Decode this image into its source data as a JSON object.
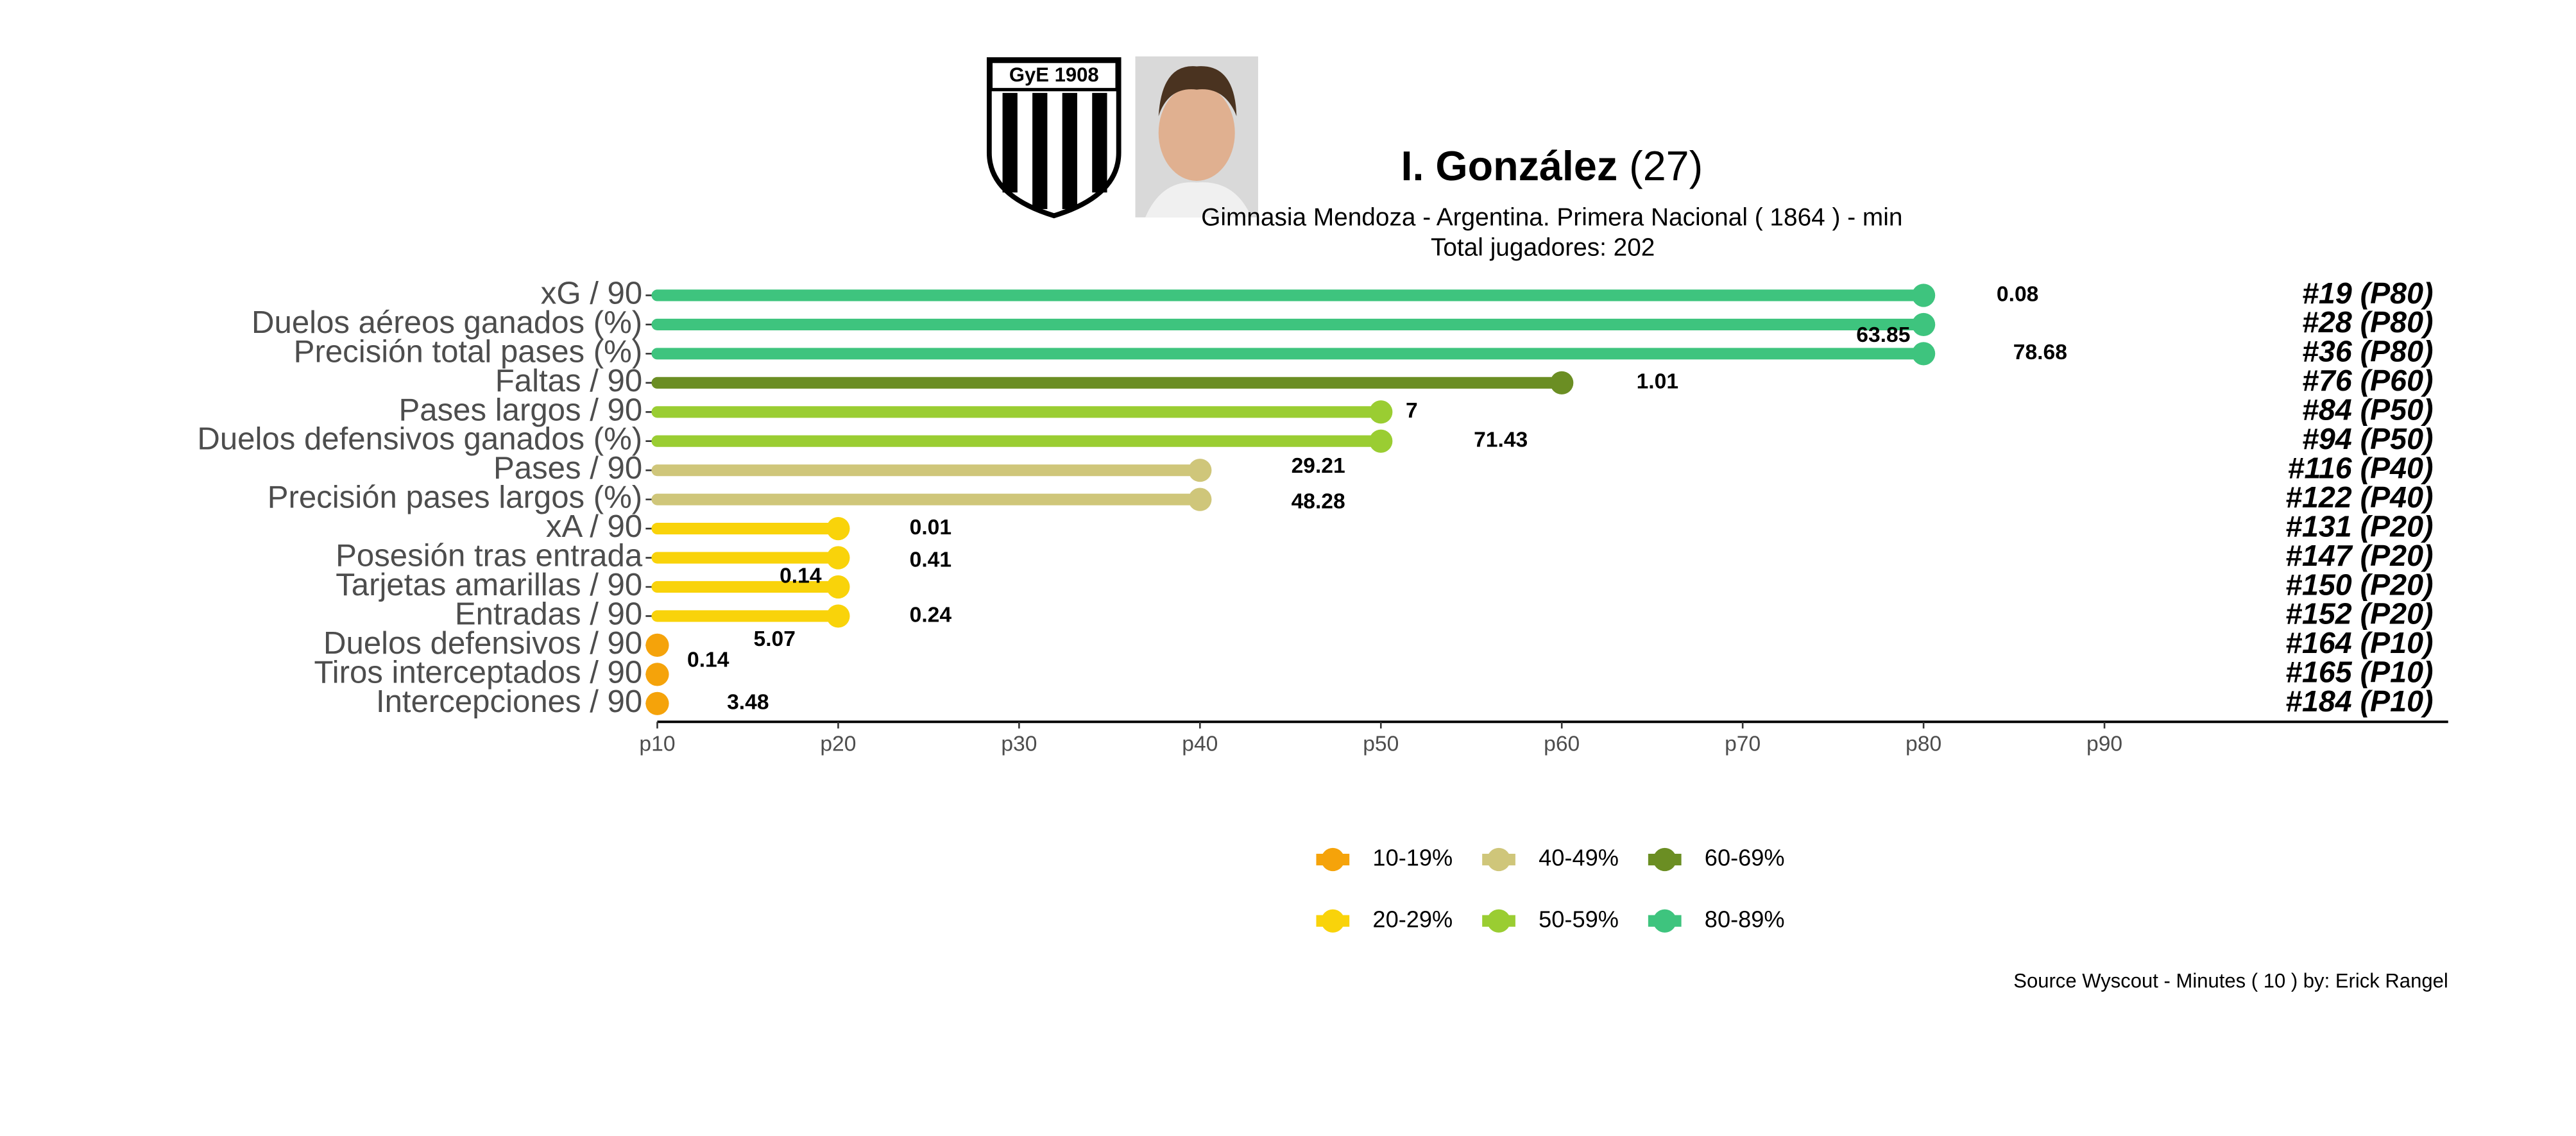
{
  "chart_data": {
    "type": "lollipop",
    "title": "I. González",
    "age": "(27)",
    "subtitle": "Gimnasia Mendoza  -  Argentina. Primera Nacional  ( 1864 ) - min",
    "subtitle2": "Total jugadores:  202",
    "caption": "Source Wyscout - Minutes ( 10 ) by: Erick Rangel",
    "categories": [
      "xG / 90",
      "Duelos aéreos ganados (%)",
      "Precisión total pases (%)",
      "Faltas / 90",
      "Pases largos / 90",
      "Duelos defensivos ganados (%)",
      "Pases / 90",
      "Precisión pases largos (%)",
      "xA / 90",
      "Posesión tras entrada",
      "Tarjetas amarillas / 90",
      "Entradas / 90",
      "Duelos defensivos / 90",
      "Tiros interceptados / 90",
      "Intercepciones / 90"
    ],
    "values": [
      80,
      80,
      80,
      60,
      50,
      50,
      40,
      40,
      20,
      20,
      20,
      20,
      10,
      10,
      10
    ],
    "colors": [
      "#3ec47e",
      "#3ec47e",
      "#3ec47e",
      "#6b8e23",
      "#9acd32",
      "#9acd32",
      "#cfc67a",
      "#cfc67a",
      "#f9d30a",
      "#f9d30a",
      "#f9d30a",
      "#f9d30a",
      "#f5a30a",
      "#f5a30a",
      "#f5a30a"
    ],
    "stats": [
      0.08,
      63.85,
      78.68,
      1.01,
      7,
      71.43,
      29.21,
      48.28,
      0.01,
      0.41,
      0.14,
      0.24,
      5.07,
      0.14,
      3.48
    ],
    "ranks": [
      "#19 (P80)",
      "#28 (P80)",
      "#36 (P80)",
      "#76 (P60)",
      "#84 (P50)",
      "#94 (P50)",
      "#116 (P40)",
      "#122 (P40)",
      "#131 (P20)",
      "#147 (P20)",
      "#150 (P20)",
      "#152 (P20)",
      "#164 (P10)",
      "#165 (P10)",
      "#184 (P10)"
    ],
    "xlim": [
      10,
      109
    ],
    "xticks": [
      {
        "value": 10,
        "label": "p10"
      },
      {
        "value": 20,
        "label": "p20"
      },
      {
        "value": 30,
        "label": "p30"
      },
      {
        "value": 40,
        "label": "p40"
      },
      {
        "value": 50,
        "label": "p50"
      },
      {
        "value": 60,
        "label": "p60"
      },
      {
        "value": 70,
        "label": "p70"
      },
      {
        "value": 80,
        "label": "p80"
      },
      {
        "value": 90,
        "label": "p90"
      }
    ],
    "legend": [
      {
        "name": "10-19%",
        "color": "#f5a30a"
      },
      {
        "name": "20-29%",
        "color": "#f9d30a"
      },
      {
        "name": "40-49%",
        "color": "#cfc67a"
      },
      {
        "name": "50-59%",
        "color": "#9acd32"
      },
      {
        "name": "60-69%",
        "color": "#6b8e23"
      },
      {
        "name": "80-89%",
        "color": "#3ec47e"
      }
    ]
  }
}
